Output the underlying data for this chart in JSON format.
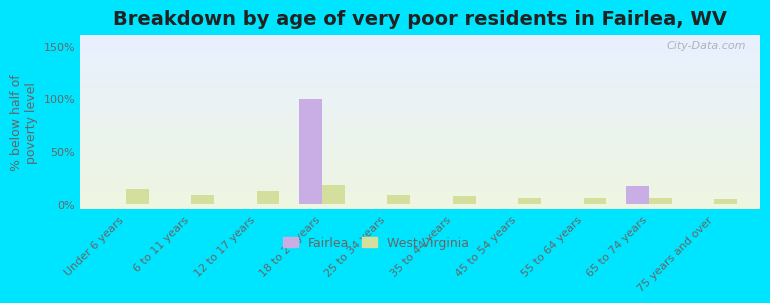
{
  "title": "Breakdown by age of very poor residents in Fairlea, WV",
  "categories": [
    "Under 6 years",
    "6 to 11 years",
    "12 to 17 years",
    "18 to 24 years",
    "25 to 34 years",
    "35 to 44 years",
    "45 to 54 years",
    "55 to 64 years",
    "65 to 74 years",
    "75 years and over"
  ],
  "fairlea_values": [
    0,
    0,
    0,
    100,
    0,
    0,
    0,
    0,
    17,
    0
  ],
  "wv_values": [
    14,
    9,
    12,
    18,
    9,
    8,
    6,
    6,
    6,
    5
  ],
  "fairlea_color": "#c9aee5",
  "wv_color": "#d4df9e",
  "background_color": "#00e5ff",
  "plot_bg_top": "#e8f0ff",
  "plot_bg_bottom": "#eef5e0",
  "ylabel": "% below half of\npoverty level",
  "ylim": [
    -5,
    160
  ],
  "yticks": [
    0,
    50,
    100,
    150
  ],
  "ytick_labels": [
    "0%",
    "50%",
    "100%",
    "150%"
  ],
  "bar_width": 0.35,
  "title_fontsize": 14,
  "axis_label_fontsize": 9,
  "tick_fontsize": 8,
  "legend_labels": [
    "Fairlea",
    "West Virginia"
  ],
  "watermark": "City-Data.com"
}
